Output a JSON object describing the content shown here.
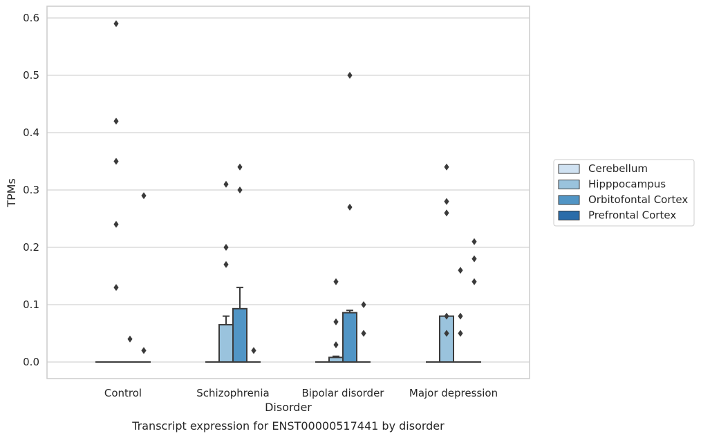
{
  "chart_data": {
    "type": "box",
    "xlabel": "Disorder",
    "ylabel": "TPMs",
    "caption": "Transcript expression for ENST00000517441 by disorder",
    "ylim": [
      -0.03,
      0.62
    ],
    "yticks": [
      "0.0",
      "0.1",
      "0.2",
      "0.3",
      "0.4",
      "0.5",
      "0.6"
    ],
    "grid": true,
    "legend_position": "right",
    "categories": [
      "Control",
      "Schizophrenia",
      "Bipolar disorder",
      "Major depression"
    ],
    "series": [
      {
        "name": "Cerebellum",
        "color": "#d0e2f2",
        "boxes": [
          {
            "q1": 0,
            "median": 0,
            "q3": 0,
            "whisker_low": 0,
            "whisker_high": 0,
            "outliers": []
          },
          {
            "q1": 0,
            "median": 0,
            "q3": 0,
            "whisker_low": 0,
            "whisker_high": 0,
            "outliers": []
          },
          {
            "q1": 0,
            "median": 0,
            "q3": 0,
            "whisker_low": 0,
            "whisker_high": 0,
            "outliers": []
          },
          {
            "q1": 0,
            "median": 0,
            "q3": 0,
            "whisker_low": 0,
            "whisker_high": 0,
            "outliers": []
          }
        ]
      },
      {
        "name": "Hipppocampus",
        "color": "#9ac3dd",
        "boxes": [
          {
            "q1": 0,
            "median": 0,
            "q3": 0,
            "whisker_low": 0,
            "whisker_high": 0,
            "outliers": [
              0.59,
              0.42,
              0.35,
              0.24,
              0.13
            ]
          },
          {
            "q1": 0,
            "median": 0,
            "q3": 0.065,
            "whisker_low": 0,
            "whisker_high": 0.08,
            "outliers": [
              0.31,
              0.2,
              0.17
            ]
          },
          {
            "q1": 0,
            "median": 0,
            "q3": 0.008,
            "whisker_low": 0,
            "whisker_high": 0.01,
            "outliers": [
              0.14,
              0.07,
              0.03
            ]
          },
          {
            "q1": 0,
            "median": 0,
            "q3": 0.08,
            "whisker_low": 0,
            "whisker_high": 0.08,
            "outliers": [
              0.34,
              0.28,
              0.26,
              0.08,
              0.05
            ]
          }
        ]
      },
      {
        "name": "Orbitofontal Cortex",
        "color": "#5195c5",
        "boxes": [
          {
            "q1": 0,
            "median": 0,
            "q3": 0,
            "whisker_low": 0,
            "whisker_high": 0,
            "outliers": [
              0.04
            ]
          },
          {
            "q1": 0,
            "median": 0,
            "q3": 0.093,
            "whisker_low": 0,
            "whisker_high": 0.13,
            "outliers": [
              0.34,
              0.3
            ]
          },
          {
            "q1": 0,
            "median": 0,
            "q3": 0.086,
            "whisker_low": 0,
            "whisker_high": 0.09,
            "outliers": [
              0.5,
              0.27
            ]
          },
          {
            "q1": 0,
            "median": 0,
            "q3": 0,
            "whisker_low": 0,
            "whisker_high": 0,
            "outliers": [
              0.16,
              0.08,
              0.05
            ]
          }
        ]
      },
      {
        "name": "Prefrontal Cortex",
        "color": "#2a6ca9",
        "boxes": [
          {
            "q1": 0,
            "median": 0,
            "q3": 0,
            "whisker_low": 0,
            "whisker_high": 0,
            "outliers": [
              0.29,
              0.02
            ]
          },
          {
            "q1": 0,
            "median": 0,
            "q3": 0,
            "whisker_low": 0,
            "whisker_high": 0,
            "outliers": [
              0.02
            ]
          },
          {
            "q1": 0,
            "median": 0,
            "q3": 0,
            "whisker_low": 0,
            "whisker_high": 0,
            "outliers": [
              0.1,
              0.05
            ]
          },
          {
            "q1": 0,
            "median": 0,
            "q3": 0,
            "whisker_low": 0,
            "whisker_high": 0,
            "outliers": [
              0.21,
              0.18,
              0.14
            ]
          }
        ]
      }
    ]
  }
}
